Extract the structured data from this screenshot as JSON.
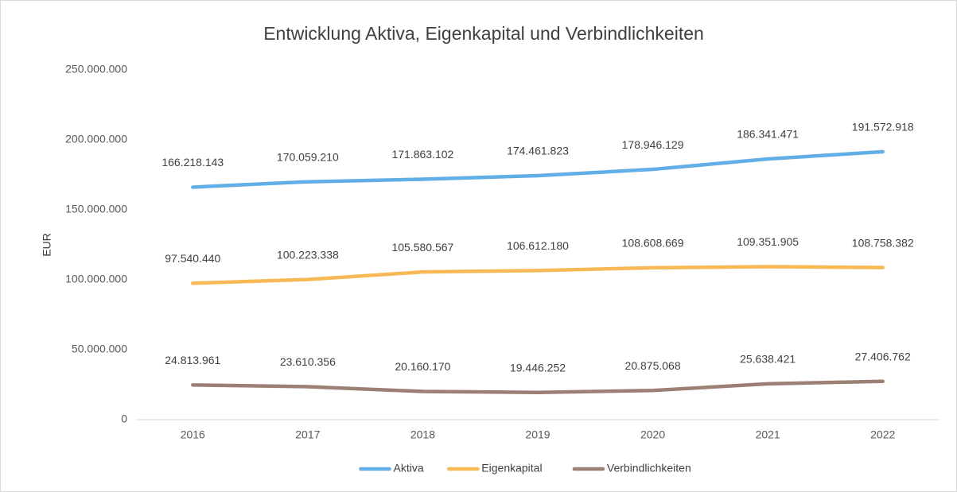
{
  "chart_data": {
    "type": "line",
    "title": "Entwicklung Aktiva, Eigenkapital und Verbindlichkeiten",
    "y_label": "EUR",
    "categories": [
      "2016",
      "2017",
      "2018",
      "2019",
      "2020",
      "2021",
      "2022"
    ],
    "series": [
      {
        "name": "Aktiva",
        "color": "#62aee6",
        "values": [
          166218143,
          170059210,
          171863102,
          174461823,
          178946129,
          186341471,
          191572918
        ],
        "value_labels": [
          "166.218.143",
          "170.059.210",
          "171.863.102",
          "174.461.823",
          "178.946.129",
          "186.341.471",
          "191.572.918"
        ]
      },
      {
        "name": "Eigenkapital",
        "color": "#f7b955",
        "values": [
          97540440,
          100223338,
          105580567,
          106612180,
          108608669,
          109351905,
          108758382
        ],
        "value_labels": [
          "97.540.440",
          "100.223.338",
          "105.580.567",
          "106.612.180",
          "108.608.669",
          "109.351.905",
          "108.758.382"
        ]
      },
      {
        "name": "Verbindlichkeiten",
        "color": "#9c8075",
        "values": [
          24813961,
          23610356,
          20160170,
          19446252,
          20875068,
          25638421,
          27406762
        ],
        "value_labels": [
          "24.813.961",
          "23.610.356",
          "20.160.170",
          "19.446.252",
          "20.875.068",
          "25.638.421",
          "27.406.762"
        ]
      }
    ],
    "ylim": [
      0,
      250000000
    ],
    "yticks": [
      0,
      {
        "value": 50000000,
        "label": "50.000.000"
      },
      {
        "value": 100000000,
        "label": "100.000.000"
      },
      {
        "value": 150000000,
        "label": "150.000.000"
      },
      {
        "value": 200000000,
        "label": "200.000.000"
      },
      {
        "value": 250000000,
        "label": "250.000.000"
      }
    ],
    "grid": false,
    "legend": "bottom"
  }
}
